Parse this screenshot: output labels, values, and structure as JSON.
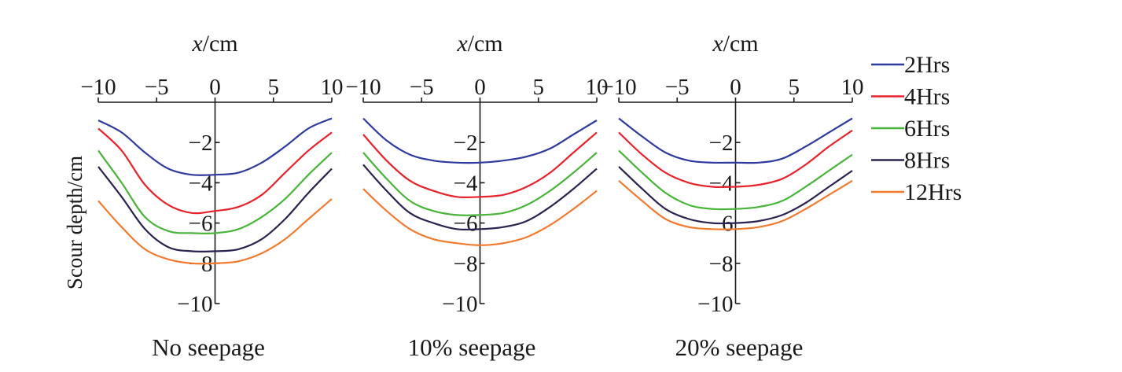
{
  "chart_data": {
    "type": "line",
    "shared": {
      "x_axis_label_italic": "x",
      "x_axis_label_unit": "/cm",
      "y_axis_label": "Scour depth/cm",
      "x_ticks": [
        -10,
        -5,
        0,
        5,
        10
      ],
      "x_tick_labels": [
        "−10",
        "−5",
        "0",
        "5",
        "10"
      ],
      "y_ticks": [
        -2,
        -4,
        -6,
        -8,
        -10
      ],
      "y_tick_labels": [
        "−2",
        "−4",
        "−6",
        "−8",
        "−10"
      ],
      "xlim": [
        -10,
        10
      ],
      "ylim": [
        -10,
        0
      ],
      "legend_position": "right"
    },
    "legend": [
      {
        "name": "2Hrs",
        "color": "#2e3a9e"
      },
      {
        "name": "4Hrs",
        "color": "#e8222b"
      },
      {
        "name": "6Hrs",
        "color": "#49b43a"
      },
      {
        "name": "8Hrs",
        "color": "#2b2250"
      },
      {
        "name": "12Hrs",
        "color": "#f27a2e"
      }
    ],
    "x": [
      -10,
      -8,
      -6,
      -4,
      -2,
      0,
      2,
      4,
      6,
      8,
      10
    ],
    "panels": [
      {
        "title": "No seepage",
        "series": [
          {
            "name": "2Hrs",
            "values": [
              -0.9,
              -1.5,
              -2.5,
              -3.3,
              -3.6,
              -3.6,
              -3.5,
              -3.0,
              -2.2,
              -1.3,
              -0.8
            ]
          },
          {
            "name": "4Hrs",
            "values": [
              -1.3,
              -2.4,
              -4.1,
              -5.1,
              -5.5,
              -5.4,
              -5.2,
              -4.6,
              -3.5,
              -2.4,
              -1.5
            ]
          },
          {
            "name": "6Hrs",
            "values": [
              -2.4,
              -4.0,
              -5.7,
              -6.4,
              -6.5,
              -6.5,
              -6.3,
              -5.7,
              -4.8,
              -3.6,
              -2.5
            ]
          },
          {
            "name": "8Hrs",
            "values": [
              -3.2,
              -4.7,
              -6.3,
              -7.2,
              -7.4,
              -7.4,
              -7.3,
              -6.8,
              -5.8,
              -4.5,
              -3.3
            ]
          },
          {
            "name": "12Hrs",
            "values": [
              -4.9,
              -6.2,
              -7.3,
              -7.8,
              -8.0,
              -8.0,
              -7.9,
              -7.5,
              -6.8,
              -5.8,
              -4.8
            ]
          }
        ]
      },
      {
        "title": "10% seepage",
        "series": [
          {
            "name": "2Hrs",
            "values": [
              -0.8,
              -1.9,
              -2.6,
              -2.9,
              -3.0,
              -3.0,
              -2.9,
              -2.7,
              -2.3,
              -1.6,
              -0.9
            ]
          },
          {
            "name": "4Hrs",
            "values": [
              -1.6,
              -2.9,
              -3.9,
              -4.4,
              -4.7,
              -4.7,
              -4.6,
              -4.2,
              -3.5,
              -2.5,
              -1.5
            ]
          },
          {
            "name": "6Hrs",
            "values": [
              -2.5,
              -3.8,
              -4.9,
              -5.4,
              -5.6,
              -5.6,
              -5.5,
              -5.1,
              -4.4,
              -3.5,
              -2.5
            ]
          },
          {
            "name": "8Hrs",
            "values": [
              -3.1,
              -4.4,
              -5.5,
              -6.0,
              -6.3,
              -6.3,
              -6.2,
              -5.9,
              -5.2,
              -4.3,
              -3.3
            ]
          },
          {
            "name": "12Hrs",
            "values": [
              -4.3,
              -5.4,
              -6.3,
              -6.8,
              -7.0,
              -7.1,
              -7.0,
              -6.7,
              -6.1,
              -5.3,
              -4.4
            ]
          }
        ]
      },
      {
        "title": "20% seepage",
        "series": [
          {
            "name": "2Hrs",
            "values": [
              -0.8,
              -1.7,
              -2.5,
              -2.9,
              -3.0,
              -3.0,
              -3.0,
              -2.8,
              -2.2,
              -1.5,
              -0.8
            ]
          },
          {
            "name": "4Hrs",
            "values": [
              -1.5,
              -2.6,
              -3.5,
              -4.0,
              -4.2,
              -4.2,
              -4.1,
              -3.8,
              -3.1,
              -2.2,
              -1.4
            ]
          },
          {
            "name": "6Hrs",
            "values": [
              -2.4,
              -3.5,
              -4.5,
              -5.1,
              -5.3,
              -5.3,
              -5.2,
              -4.9,
              -4.2,
              -3.4,
              -2.6
            ]
          },
          {
            "name": "8Hrs",
            "values": [
              -3.2,
              -4.3,
              -5.3,
              -5.8,
              -6.0,
              -6.0,
              -5.9,
              -5.6,
              -5.0,
              -4.2,
              -3.4
            ]
          },
          {
            "name": "12Hrs",
            "values": [
              -3.9,
              -4.9,
              -5.8,
              -6.2,
              -6.3,
              -6.3,
              -6.2,
              -5.9,
              -5.3,
              -4.6,
              -3.9
            ]
          }
        ]
      }
    ]
  }
}
